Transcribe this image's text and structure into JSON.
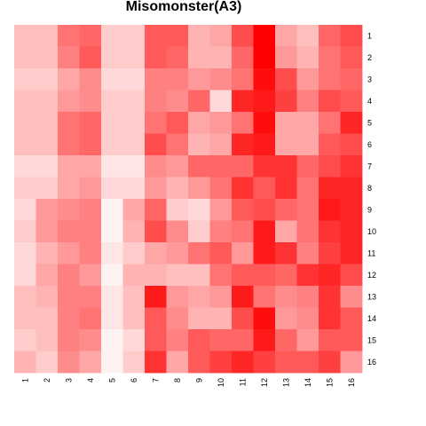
{
  "chart_data": {
    "type": "heatmap",
    "title": "Misomonster(A3)",
    "xlabel": "",
    "ylabel": "",
    "x_labels": [
      "1",
      "2",
      "3",
      "4",
      "5",
      "6",
      "7",
      "8",
      "9",
      "10",
      "11",
      "12",
      "13",
      "14",
      "15",
      "16"
    ],
    "y_labels": [
      "1",
      "2",
      "3",
      "4",
      "5",
      "6",
      "7",
      "8",
      "9",
      "10",
      "11",
      "12",
      "13",
      "14",
      "15",
      "16"
    ],
    "value_range": [
      0,
      1
    ],
    "color_low": "#ffffff",
    "color_high": "#ff0000",
    "legend": "none",
    "values": [
      [
        0.25,
        0.25,
        0.55,
        0.6,
        0.2,
        0.2,
        0.65,
        0.65,
        0.3,
        0.35,
        0.7,
        1.0,
        0.35,
        0.25,
        0.6,
        0.7
      ],
      [
        0.25,
        0.25,
        0.5,
        0.65,
        0.2,
        0.2,
        0.65,
        0.6,
        0.3,
        0.3,
        0.6,
        1.0,
        0.4,
        0.3,
        0.55,
        0.65
      ],
      [
        0.2,
        0.2,
        0.35,
        0.45,
        0.15,
        0.15,
        0.5,
        0.5,
        0.4,
        0.45,
        0.55,
        0.95,
        0.7,
        0.4,
        0.55,
        0.6
      ],
      [
        0.25,
        0.25,
        0.4,
        0.45,
        0.2,
        0.2,
        0.5,
        0.45,
        0.6,
        0.15,
        0.85,
        0.9,
        0.75,
        0.5,
        0.7,
        0.65
      ],
      [
        0.25,
        0.25,
        0.55,
        0.6,
        0.2,
        0.2,
        0.55,
        0.65,
        0.35,
        0.4,
        0.55,
        0.95,
        0.35,
        0.35,
        0.55,
        0.85
      ],
      [
        0.25,
        0.25,
        0.55,
        0.6,
        0.2,
        0.2,
        0.7,
        0.55,
        0.3,
        0.35,
        0.85,
        0.9,
        0.35,
        0.35,
        0.65,
        0.7
      ],
      [
        0.15,
        0.15,
        0.35,
        0.35,
        0.1,
        0.1,
        0.45,
        0.4,
        0.6,
        0.6,
        0.6,
        0.8,
        0.8,
        0.6,
        0.7,
        0.8
      ],
      [
        0.2,
        0.2,
        0.35,
        0.4,
        0.15,
        0.15,
        0.4,
        0.3,
        0.4,
        0.55,
        0.8,
        0.65,
        0.8,
        0.55,
        0.85,
        0.85
      ],
      [
        0.15,
        0.4,
        0.45,
        0.5,
        0.05,
        0.35,
        0.6,
        0.2,
        0.15,
        0.4,
        0.65,
        0.7,
        0.6,
        0.55,
        0.9,
        0.85
      ],
      [
        0.2,
        0.4,
        0.5,
        0.5,
        0.05,
        0.3,
        0.7,
        0.45,
        0.2,
        0.5,
        0.55,
        0.9,
        0.35,
        0.55,
        0.8,
        0.85
      ],
      [
        0.15,
        0.3,
        0.4,
        0.5,
        0.1,
        0.2,
        0.35,
        0.4,
        0.55,
        0.65,
        0.4,
        0.9,
        0.8,
        0.5,
        0.75,
        0.85
      ],
      [
        0.15,
        0.35,
        0.5,
        0.4,
        0.05,
        0.3,
        0.3,
        0.25,
        0.25,
        0.55,
        0.65,
        0.65,
        0.6,
        0.8,
        0.85,
        0.7
      ],
      [
        0.25,
        0.3,
        0.5,
        0.5,
        0.1,
        0.25,
        0.9,
        0.4,
        0.35,
        0.4,
        0.9,
        0.55,
        0.45,
        0.5,
        0.8,
        0.45
      ],
      [
        0.25,
        0.25,
        0.5,
        0.55,
        0.1,
        0.25,
        0.65,
        0.45,
        0.3,
        0.3,
        0.7,
        0.95,
        0.4,
        0.45,
        0.8,
        0.65
      ],
      [
        0.2,
        0.25,
        0.5,
        0.45,
        0.05,
        0.15,
        0.65,
        0.5,
        0.65,
        0.6,
        0.6,
        0.9,
        0.6,
        0.4,
        0.65,
        0.65
      ],
      [
        0.3,
        0.2,
        0.45,
        0.35,
        0.05,
        0.2,
        0.8,
        0.35,
        0.65,
        0.75,
        0.85,
        0.75,
        0.65,
        0.65,
        0.75,
        0.4
      ]
    ]
  }
}
